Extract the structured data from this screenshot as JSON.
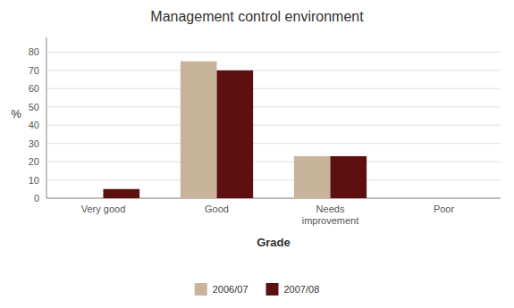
{
  "chart_data": {
    "type": "bar",
    "title": "Management control environment",
    "categories": [
      "Very good",
      "Good",
      "Needs\nimprovement",
      "Poor"
    ],
    "series": [
      {
        "name": "2006/07",
        "color": "#c8b49a",
        "values": [
          0,
          75,
          23,
          0
        ]
      },
      {
        "name": "2007/08",
        "color": "#5c1010",
        "values": [
          5,
          70,
          23,
          0
        ]
      }
    ],
    "xlabel": "Grade",
    "ylabel": "%",
    "ylim": [
      0,
      88
    ],
    "yticks": [
      0,
      10,
      20,
      30,
      40,
      50,
      60,
      70,
      80
    ],
    "grid": true,
    "legend": "bottom"
  }
}
